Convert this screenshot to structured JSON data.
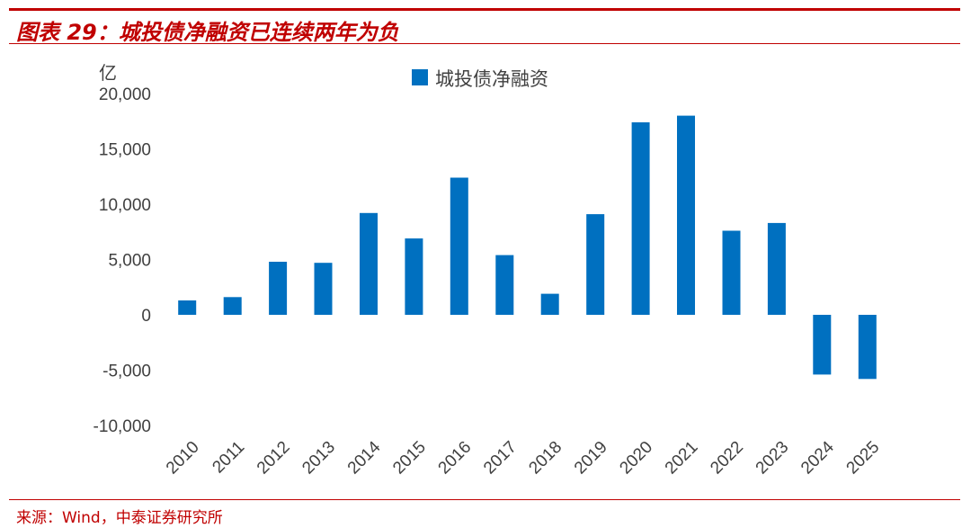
{
  "header": {
    "title": "图表 29：城投债净融资已连续两年为负"
  },
  "footer": {
    "source": "来源：Wind，中泰证券研究所"
  },
  "chart_data": {
    "type": "bar",
    "title": "图表 29：城投债净融资已连续两年为负",
    "ylabel": "亿",
    "ylim": [
      -10000,
      20000
    ],
    "yticks": [
      20000,
      15000,
      10000,
      5000,
      0,
      -5000,
      -10000
    ],
    "ytick_labels": [
      "20,000",
      "15,000",
      "10,000",
      "5,000",
      "0",
      "-5,000",
      "-10,000"
    ],
    "grid": false,
    "legend_position": "top-center",
    "categories": [
      "2010",
      "2011",
      "2012",
      "2013",
      "2014",
      "2015",
      "2016",
      "2017",
      "2018",
      "2019",
      "2020",
      "2021",
      "2022",
      "2023",
      "2024",
      "2025"
    ],
    "series": [
      {
        "name": "城投债净融资",
        "color": "#0070c0",
        "values": [
          1300,
          1600,
          4800,
          4700,
          9200,
          6900,
          12400,
          5400,
          1900,
          9100,
          17400,
          18000,
          7600,
          8300,
          -5400,
          -5800
        ]
      }
    ]
  }
}
